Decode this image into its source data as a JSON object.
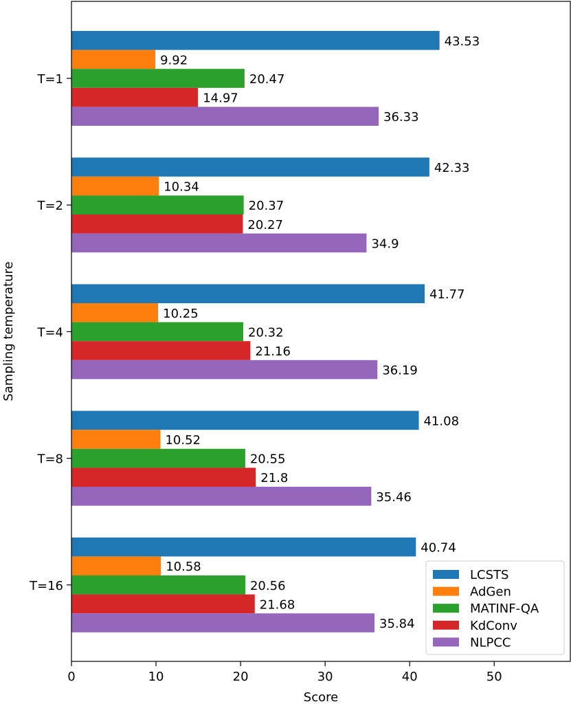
{
  "chart_data": {
    "type": "bar",
    "orientation": "horizontal",
    "title": "",
    "xlabel": "Score",
    "ylabel": "Sampling temperature",
    "xlim": [
      0,
      59
    ],
    "xticks": [
      "0",
      "10",
      "20",
      "30",
      "40",
      "50"
    ],
    "categories": [
      "T=1",
      "T=2",
      "T=4",
      "T=8",
      "T=16"
    ],
    "series": [
      {
        "name": "LCSTS",
        "color": "#1f77b4",
        "values": [
          43.53,
          42.33,
          41.77,
          41.08,
          40.74
        ],
        "labels": [
          "43.53",
          "42.33",
          "41.77",
          "41.08",
          "40.74"
        ]
      },
      {
        "name": "AdGen",
        "color": "#ff7f0e",
        "values": [
          9.92,
          10.34,
          10.25,
          10.52,
          10.58
        ],
        "labels": [
          "9.92",
          "10.34",
          "10.25",
          "10.52",
          "10.58"
        ]
      },
      {
        "name": "MATINF-QA",
        "color": "#2ca02c",
        "values": [
          20.47,
          20.37,
          20.32,
          20.55,
          20.56
        ],
        "labels": [
          "20.47",
          "20.37",
          "20.32",
          "20.55",
          "20.56"
        ]
      },
      {
        "name": "KdConv",
        "color": "#d62728",
        "values": [
          14.97,
          20.27,
          21.16,
          21.8,
          21.68
        ],
        "labels": [
          "14.97",
          "20.27",
          "21.16",
          "21.8",
          "21.68"
        ]
      },
      {
        "name": "NLPCC",
        "color": "#9467bd",
        "values": [
          36.33,
          34.9,
          36.19,
          35.46,
          35.84
        ],
        "labels": [
          "36.33",
          "34.9",
          "36.19",
          "35.46",
          "35.84"
        ]
      }
    ],
    "grid": false,
    "legend": "lower-right"
  }
}
